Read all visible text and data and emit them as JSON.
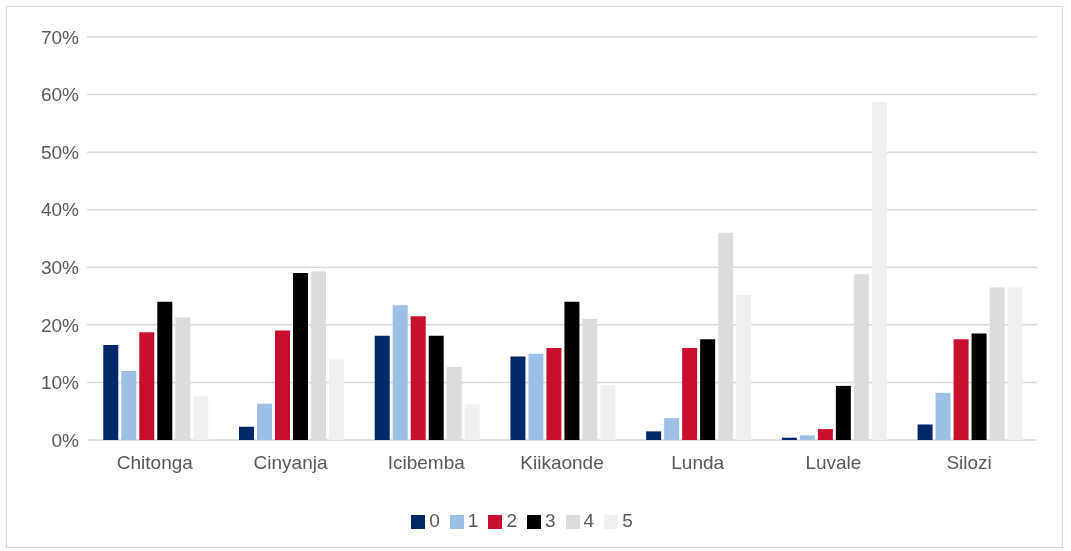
{
  "chart_data": {
    "type": "bar",
    "categories": [
      "Chitonga",
      "Cinyanja",
      "Icibemba",
      "Kiikaonde",
      "Lunda",
      "Luvale",
      "Silozi"
    ],
    "series": [
      {
        "name": "0",
        "color": "#002868",
        "values": [
          16.5,
          2.3,
          18.1,
          14.5,
          1.5,
          0.4,
          2.7
        ]
      },
      {
        "name": "1",
        "color": "#9dc0e6",
        "values": [
          12,
          6.3,
          23.4,
          15,
          3.8,
          0.8,
          8.2
        ]
      },
      {
        "name": "2",
        "color": "#c8102e",
        "values": [
          18.7,
          19,
          21.5,
          16,
          16,
          1.9,
          17.5
        ]
      },
      {
        "name": "3",
        "color": "#000000",
        "values": [
          24,
          29,
          18.1,
          24,
          17.5,
          9.4,
          18.5
        ]
      },
      {
        "name": "4",
        "color": "#dcdcdc",
        "values": [
          21.3,
          29.3,
          12.7,
          21,
          36,
          28.8,
          26.5
        ]
      },
      {
        "name": "5",
        "color": "#f0f0f0",
        "values": [
          7.7,
          14,
          6.2,
          9.5,
          25.2,
          58.7,
          26.5
        ]
      }
    ],
    "ylim": [
      0,
      70
    ],
    "yticks": [
      {
        "value": 0,
        "label": "0%"
      },
      {
        "value": 10,
        "label": "10%"
      },
      {
        "value": 20,
        "label": "20%"
      },
      {
        "value": 30,
        "label": "30%"
      },
      {
        "value": 40,
        "label": "40%"
      },
      {
        "value": 50,
        "label": "50%"
      },
      {
        "value": 60,
        "label": "60%"
      },
      {
        "value": 70,
        "label": "70%"
      }
    ],
    "grid": "y",
    "legend": "bottom"
  }
}
